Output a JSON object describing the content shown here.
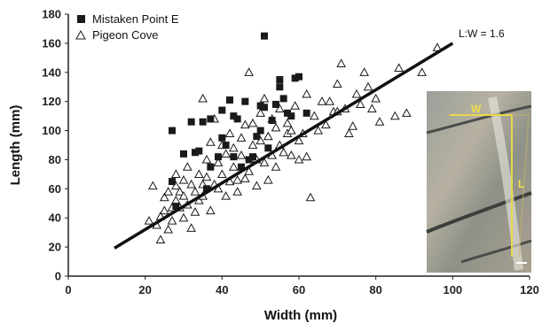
{
  "chart_data": {
    "type": "scatter",
    "xlabel": "Width (mm)",
    "ylabel": "Length (mm)",
    "xlim": [
      0,
      120
    ],
    "ylim": [
      0,
      180
    ],
    "xticks": [
      0,
      20,
      40,
      60,
      80,
      100,
      120
    ],
    "yticks": [
      0,
      20,
      40,
      60,
      80,
      100,
      120,
      140,
      160,
      180
    ],
    "grid": false,
    "legend_position": "top-left",
    "series": [
      {
        "name": "Mistaken Point E",
        "marker": "filled-square",
        "color": "#1a1a1a",
        "points": [
          [
            27,
            100
          ],
          [
            27,
            65
          ],
          [
            28,
            48
          ],
          [
            30,
            84
          ],
          [
            32,
            106
          ],
          [
            33,
            85
          ],
          [
            34,
            86
          ],
          [
            35,
            106
          ],
          [
            36,
            60
          ],
          [
            37,
            75
          ],
          [
            37,
            108
          ],
          [
            39,
            82
          ],
          [
            40,
            114
          ],
          [
            40,
            95
          ],
          [
            41,
            90
          ],
          [
            42,
            121
          ],
          [
            43,
            110
          ],
          [
            43,
            82
          ],
          [
            44,
            108
          ],
          [
            45,
            75
          ],
          [
            46,
            120
          ],
          [
            47,
            80
          ],
          [
            48,
            82
          ],
          [
            49,
            96
          ],
          [
            50,
            100
          ],
          [
            50,
            117
          ],
          [
            51,
            165
          ],
          [
            51,
            116
          ],
          [
            52,
            88
          ],
          [
            53,
            107
          ],
          [
            54,
            118
          ],
          [
            55,
            135
          ],
          [
            55,
            130
          ],
          [
            56,
            122
          ],
          [
            57,
            112
          ],
          [
            58,
            110
          ],
          [
            59,
            136
          ],
          [
            60,
            137
          ],
          [
            62,
            112
          ]
        ]
      },
      {
        "name": "Pigeon Cove",
        "marker": "open-triangle",
        "color": "#1a1a1a",
        "points": [
          [
            21,
            38
          ],
          [
            22,
            62
          ],
          [
            23,
            35
          ],
          [
            24,
            25
          ],
          [
            24,
            41
          ],
          [
            25,
            45
          ],
          [
            25,
            54
          ],
          [
            26,
            32
          ],
          [
            26,
            58
          ],
          [
            27,
            38
          ],
          [
            27,
            47
          ],
          [
            28,
            70
          ],
          [
            28,
            52
          ],
          [
            28,
            62
          ],
          [
            29,
            58
          ],
          [
            29,
            47
          ],
          [
            30,
            40
          ],
          [
            30,
            66
          ],
          [
            30,
            55
          ],
          [
            31,
            75
          ],
          [
            31,
            49
          ],
          [
            32,
            33
          ],
          [
            32,
            63
          ],
          [
            33,
            44
          ],
          [
            33,
            58
          ],
          [
            34,
            70
          ],
          [
            34,
            52
          ],
          [
            35,
            55
          ],
          [
            35,
            63
          ],
          [
            35,
            122
          ],
          [
            36,
            68
          ],
          [
            36,
            80
          ],
          [
            37,
            45
          ],
          [
            37,
            92
          ],
          [
            38,
            63
          ],
          [
            38,
            108
          ],
          [
            39,
            78
          ],
          [
            39,
            60
          ],
          [
            40,
            90
          ],
          [
            40,
            70
          ],
          [
            41,
            55
          ],
          [
            41,
            84
          ],
          [
            42,
            65
          ],
          [
            42,
            98
          ],
          [
            43,
            75
          ],
          [
            43,
            88
          ],
          [
            44,
            58
          ],
          [
            44,
            66
          ],
          [
            45,
            95
          ],
          [
            45,
            83
          ],
          [
            46,
            67
          ],
          [
            46,
            104
          ],
          [
            47,
            72
          ],
          [
            47,
            140
          ],
          [
            48,
            90
          ],
          [
            48,
            105
          ],
          [
            49,
            80
          ],
          [
            49,
            62
          ],
          [
            50,
            93
          ],
          [
            50,
            112
          ],
          [
            51,
            78
          ],
          [
            51,
            122
          ],
          [
            52,
            96
          ],
          [
            52,
            66
          ],
          [
            53,
            83
          ],
          [
            53,
            108
          ],
          [
            54,
            102
          ],
          [
            54,
            75
          ],
          [
            55,
            115
          ],
          [
            55,
            90
          ],
          [
            56,
            85
          ],
          [
            57,
            98
          ],
          [
            57,
            105
          ],
          [
            58,
            100
          ],
          [
            58,
            83
          ],
          [
            59,
            117
          ],
          [
            60,
            80
          ],
          [
            60,
            93
          ],
          [
            61,
            98
          ],
          [
            62,
            82
          ],
          [
            62,
            125
          ],
          [
            63,
            54
          ],
          [
            64,
            110
          ],
          [
            65,
            100
          ],
          [
            66,
            120
          ],
          [
            67,
            104
          ],
          [
            68,
            120
          ],
          [
            69,
            113
          ],
          [
            70,
            132
          ],
          [
            70,
            113
          ],
          [
            71,
            146
          ],
          [
            72,
            115
          ],
          [
            73,
            98
          ],
          [
            74,
            103
          ],
          [
            75,
            125
          ],
          [
            76,
            118
          ],
          [
            77,
            140
          ],
          [
            78,
            130
          ],
          [
            79,
            115
          ],
          [
            80,
            122
          ],
          [
            81,
            106
          ],
          [
            85,
            110
          ],
          [
            86,
            143
          ],
          [
            88,
            112
          ],
          [
            92,
            140
          ],
          [
            96,
            157
          ]
        ]
      }
    ],
    "trendline": {
      "label": "L:W = 1.6",
      "x_start": 12,
      "x_end": 100,
      "slope": 1.6,
      "intercept": 0
    },
    "inset_photo": {
      "labels": [
        "W",
        "L"
      ]
    }
  }
}
